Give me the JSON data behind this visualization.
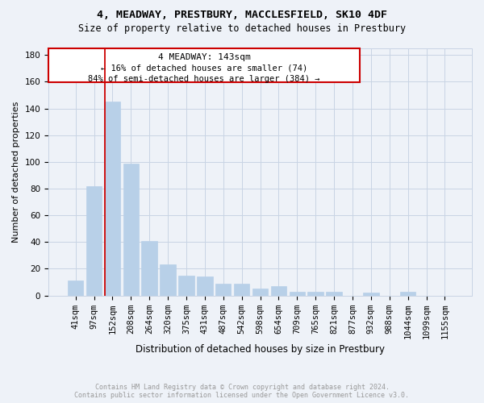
{
  "title": "4, MEADWAY, PRESTBURY, MACCLESFIELD, SK10 4DF",
  "subtitle": "Size of property relative to detached houses in Prestbury",
  "xlabel": "Distribution of detached houses by size in Prestbury",
  "ylabel": "Number of detached properties",
  "bar_color": "#b8d0e8",
  "bar_edge_color": "#b8d0e8",
  "grid_color": "#c8d4e4",
  "annotation_line_color": "#cc0000",
  "annotation_box_color": "#cc0000",
  "property_label": "4 MEADWAY: 143sqm",
  "annotation_line1": "← 16% of detached houses are smaller (74)",
  "annotation_line2": "84% of semi-detached houses are larger (384) →",
  "categories": [
    "41sqm",
    "97sqm",
    "152sqm",
    "208sqm",
    "264sqm",
    "320sqm",
    "375sqm",
    "431sqm",
    "487sqm",
    "542sqm",
    "598sqm",
    "654sqm",
    "709sqm",
    "765sqm",
    "821sqm",
    "877sqm",
    "932sqm",
    "988sqm",
    "1044sqm",
    "1099sqm",
    "1155sqm"
  ],
  "values": [
    11,
    82,
    145,
    99,
    41,
    23,
    15,
    14,
    9,
    9,
    5,
    7,
    3,
    3,
    3,
    0,
    2,
    0,
    3,
    0,
    0
  ],
  "vline_index": 2,
  "ylim": [
    0,
    185
  ],
  "yticks": [
    0,
    20,
    40,
    60,
    80,
    100,
    120,
    140,
    160,
    180
  ],
  "footer_line1": "Contains HM Land Registry data © Crown copyright and database right 2024.",
  "footer_line2": "Contains public sector information licensed under the Open Government Licence v3.0.",
  "footer_color": "#999999",
  "background_color": "#eef2f8",
  "title_fontsize": 9.5,
  "subtitle_fontsize": 8.5,
  "ylabel_fontsize": 8,
  "xlabel_fontsize": 8.5,
  "tick_fontsize": 7.5,
  "annot_fontsize": 8,
  "footer_fontsize": 6
}
